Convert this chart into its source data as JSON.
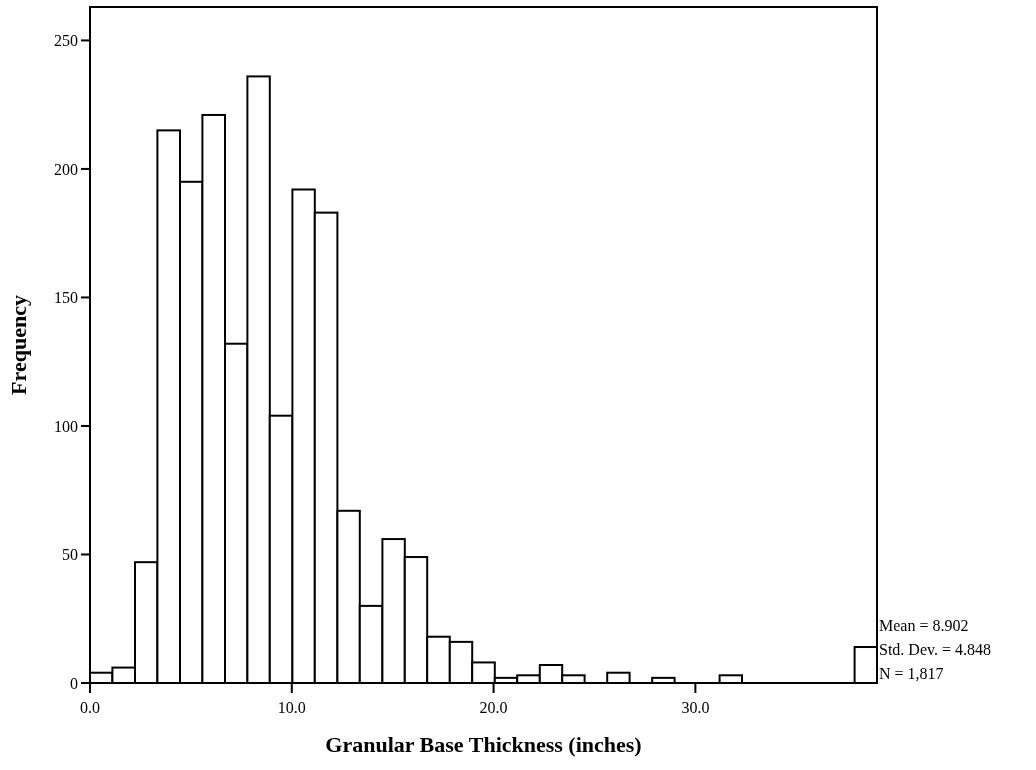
{
  "chart_data": {
    "type": "histogram",
    "xlabel": "Granular Base Thickness (inches)",
    "ylabel": "Frequency",
    "bins": [
      0,
      1.11,
      2.23,
      3.34,
      4.46,
      5.57,
      6.69,
      7.8,
      8.91,
      10.03,
      11.14,
      12.26,
      13.37,
      14.49,
      15.6,
      16.71,
      17.83,
      18.94,
      20.06,
      21.17,
      22.29,
      23.4,
      24.51,
      25.63,
      26.74,
      27.86,
      28.97,
      30.09,
      31.2,
      32.31,
      33.43,
      34.54,
      35.66,
      36.77,
      37.89,
      39
    ],
    "values": [
      4,
      6,
      47,
      215,
      195,
      221,
      132,
      236,
      104,
      192,
      183,
      67,
      30,
      56,
      49,
      18,
      16,
      8,
      2,
      3,
      7,
      3,
      0,
      4,
      0,
      2,
      0,
      0,
      3,
      0,
      0,
      0,
      0,
      0,
      14
    ],
    "color": "#ffffff",
    "xlim": [
      0,
      39
    ],
    "xticks": [
      {
        "value": 0,
        "label": "0.0"
      },
      {
        "value": 10,
        "label": "10.0"
      },
      {
        "value": 20,
        "label": "20.0"
      },
      {
        "value": 30,
        "label": "30.0"
      }
    ],
    "ylim": [
      0,
      263
    ],
    "yticks": [
      0,
      50,
      100,
      150,
      200,
      250
    ],
    "annotations": [
      "Mean = 8.902",
      "Std. Dev. = 4.848",
      "N = 1,817"
    ]
  }
}
